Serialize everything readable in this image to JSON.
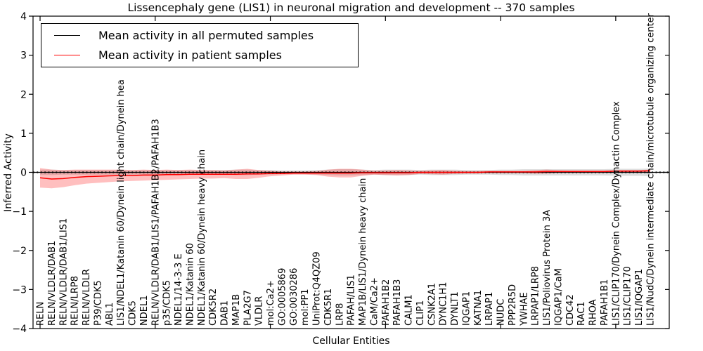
{
  "window": {
    "background": "#ffffff"
  },
  "header": {
    "title": "Lissencephaly gene (LIS1) in neuronal migration and development -- 370 samples"
  },
  "legend": {
    "items": [
      {
        "label": "Mean activity in all permuted samples",
        "color": "#000000"
      },
      {
        "label": "Mean activity in patient samples",
        "color": "#ff0000"
      }
    ]
  },
  "chart_data": {
    "type": "line",
    "title": "Lissencephaly gene (LIS1) in neuronal migration and development -- 370 samples",
    "xlabel": "Cellular Entities",
    "ylabel": "Inferred Activity",
    "ylim": [
      -4,
      4
    ],
    "yticks": [
      -4,
      -3,
      -2,
      -1,
      0,
      1,
      2,
      3,
      4
    ],
    "grid": false,
    "legend_position": "upper left",
    "x_tick_label_rotation": 90,
    "major_x_tick_indices": [
      0,
      10,
      20,
      30,
      40,
      50
    ],
    "categories": [
      "RELN",
      "RELN/VLDLR/DAB1",
      "RELN/VLDLR/DAB1/LIS1",
      "RELN/LRP8",
      "RELN/VLDLR",
      "P39/CDK5",
      "ABL1",
      "LIS1/NDEL1/Katanin 60/Dynein light chain/Dynein hea",
      "CDK5",
      "NDEL1",
      "RELN/VLDLR/DAB1/LIS1/PAFAH1B2/PAFAH1B3",
      "p35/CDK5",
      "NDEL1/14-3-3 E",
      "NDEL1/Katanin 60",
      "NDEL1/Katanin 60/Dynein heavy chain",
      "CDK5R2",
      "DAB1",
      "MAP1B",
      "PLA2G7",
      "VLDLR",
      "mol:Ca2+",
      "GO:0005869",
      "GO:0030286",
      "mol:PP1",
      "UniProt:Q4QZ09",
      "CDK5R1",
      "LRP8",
      "PAFAH/LIS1",
      "MAP1B/LIS1/Dynein heavy chain",
      "CaM/Ca2+",
      "PAFAH1B2",
      "PAFAH1B3",
      "CALM1",
      "CLIP1",
      "CSNK2A1",
      "DYNC1H1",
      "DYNLT1",
      "IQGAP1",
      "KATNA1",
      "LRPAP1",
      "NUDC",
      "PPP2R5D",
      "YWHAE",
      "LRPAP1/LRP8",
      "LIS1/Poliovirus Protein 3A",
      "IQGAP1/CaM",
      "CDC42",
      "RAC1",
      "RHOA",
      "PAFAH1B1",
      "LIS1/CLIP170/Dynein Complex/Dynactin Complex",
      "LIS1/CLIP170",
      "LIS1/IQGAP1",
      "LIS1/NudC/Dynein intermediate chain/microtubule organizing center"
    ],
    "series": [
      {
        "name": "Mean activity in all permuted samples",
        "color": "#000000",
        "band_color": "rgba(0,0,0,0.13)",
        "line_style": "solid-with-dots",
        "values": [
          0,
          0,
          0,
          0,
          0,
          0,
          0,
          0,
          0,
          0,
          0,
          0,
          0,
          0,
          0,
          0,
          0,
          0,
          0,
          0,
          0,
          0,
          0,
          0,
          0,
          0,
          0,
          0,
          0,
          0,
          0,
          0,
          0,
          0,
          0,
          0,
          0,
          0,
          0,
          0,
          0,
          0,
          0,
          0,
          0,
          0,
          0,
          0,
          0,
          0,
          0,
          0,
          0,
          0
        ],
        "band_halfwidth": [
          0.07,
          0.07,
          0.06,
          0.06,
          0.06,
          0.06,
          0.06,
          0.06,
          0.06,
          0.06,
          0.06,
          0.06,
          0.06,
          0.06,
          0.06,
          0.06,
          0.06,
          0.07,
          0.07,
          0.06,
          0.06,
          0.05,
          0.05,
          0.05,
          0.06,
          0.07,
          0.08,
          0.08,
          0.07,
          0.06,
          0.07,
          0.07,
          0.07,
          0.06,
          0.07,
          0.07,
          0.07,
          0.06,
          0.06,
          0.06,
          0.07,
          0.07,
          0.08,
          0.08,
          0.08,
          0.08,
          0.08,
          0.08,
          0.08,
          0.08,
          0.09,
          0.09,
          0.09,
          0.1
        ]
      },
      {
        "name": "Mean activity in patient samples",
        "color": "#ff0000",
        "band_color": "rgba(255,0,0,0.25)",
        "line_style": "solid",
        "values": [
          -0.14,
          -0.17,
          -0.16,
          -0.13,
          -0.11,
          -0.1,
          -0.09,
          -0.08,
          -0.08,
          -0.07,
          -0.07,
          -0.06,
          -0.06,
          -0.05,
          -0.05,
          -0.05,
          -0.05,
          -0.05,
          -0.04,
          -0.04,
          -0.03,
          -0.03,
          -0.02,
          -0.02,
          -0.02,
          -0.02,
          -0.02,
          -0.02,
          -0.01,
          -0.01,
          -0.01,
          -0.01,
          -0.01,
          0,
          0,
          0,
          0,
          0,
          0,
          0.01,
          0.01,
          0.01,
          0.01,
          0.01,
          0.02,
          0.02,
          0.02,
          0.02,
          0.02,
          0.02,
          0.03,
          0.03,
          0.03,
          0.04
        ],
        "band_halfwidth": [
          0.25,
          0.24,
          0.22,
          0.2,
          0.18,
          0.17,
          0.16,
          0.15,
          0.14,
          0.14,
          0.13,
          0.13,
          0.12,
          0.12,
          0.11,
          0.11,
          0.1,
          0.12,
          0.13,
          0.1,
          0.07,
          0.05,
          0.04,
          0.04,
          0.05,
          0.09,
          0.11,
          0.11,
          0.08,
          0.05,
          0.06,
          0.07,
          0.06,
          0.04,
          0.05,
          0.06,
          0.04,
          0.03,
          0.03,
          0.03,
          0.03,
          0.03,
          0.03,
          0.045,
          0.05,
          0.035,
          0.03,
          0.03,
          0.03,
          0.03,
          0.03,
          0.03,
          0.03,
          0.03
        ]
      }
    ]
  }
}
